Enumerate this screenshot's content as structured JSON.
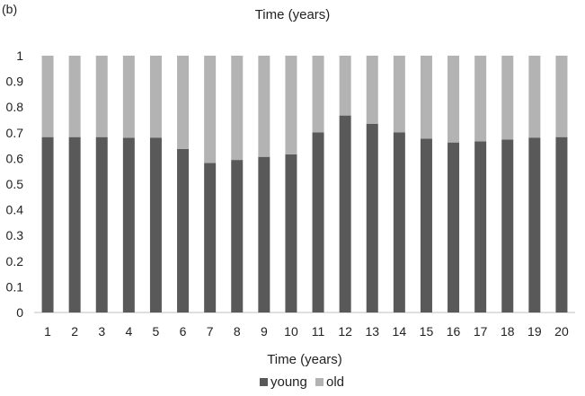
{
  "panel_label": "(b)",
  "chart_data": {
    "type": "bar",
    "stacked": true,
    "title": "Time (years)",
    "xlabel": "Time (years)",
    "ylabel": "",
    "ylim": [
      0,
      1
    ],
    "yticks": [
      0,
      0.1,
      0.2,
      0.3,
      0.4,
      0.5,
      0.6,
      0.7,
      0.8,
      0.9,
      1
    ],
    "ytick_labels": [
      "0",
      "0.1",
      "0.2",
      "0.3",
      "0.4",
      "0.5",
      "0.6",
      "0.7",
      "0.8",
      "0.9",
      "1"
    ],
    "categories": [
      "1",
      "2",
      "3",
      "4",
      "5",
      "6",
      "7",
      "8",
      "9",
      "10",
      "11",
      "12",
      "13",
      "14",
      "15",
      "16",
      "17",
      "18",
      "19",
      "20"
    ],
    "series": [
      {
        "name": "young",
        "color": "#595959",
        "values": [
          0.683,
          0.683,
          0.683,
          0.68,
          0.681,
          0.637,
          0.582,
          0.594,
          0.606,
          0.616,
          0.701,
          0.767,
          0.735,
          0.701,
          0.677,
          0.662,
          0.666,
          0.673,
          0.681,
          0.683
        ]
      },
      {
        "name": "old",
        "color": "#b3b3b3",
        "values": [
          0.317,
          0.317,
          0.317,
          0.32,
          0.319,
          0.363,
          0.418,
          0.406,
          0.394,
          0.384,
          0.299,
          0.233,
          0.265,
          0.299,
          0.323,
          0.338,
          0.334,
          0.327,
          0.319,
          0.317
        ]
      }
    ],
    "grid": false,
    "legend_position": "bottom"
  }
}
